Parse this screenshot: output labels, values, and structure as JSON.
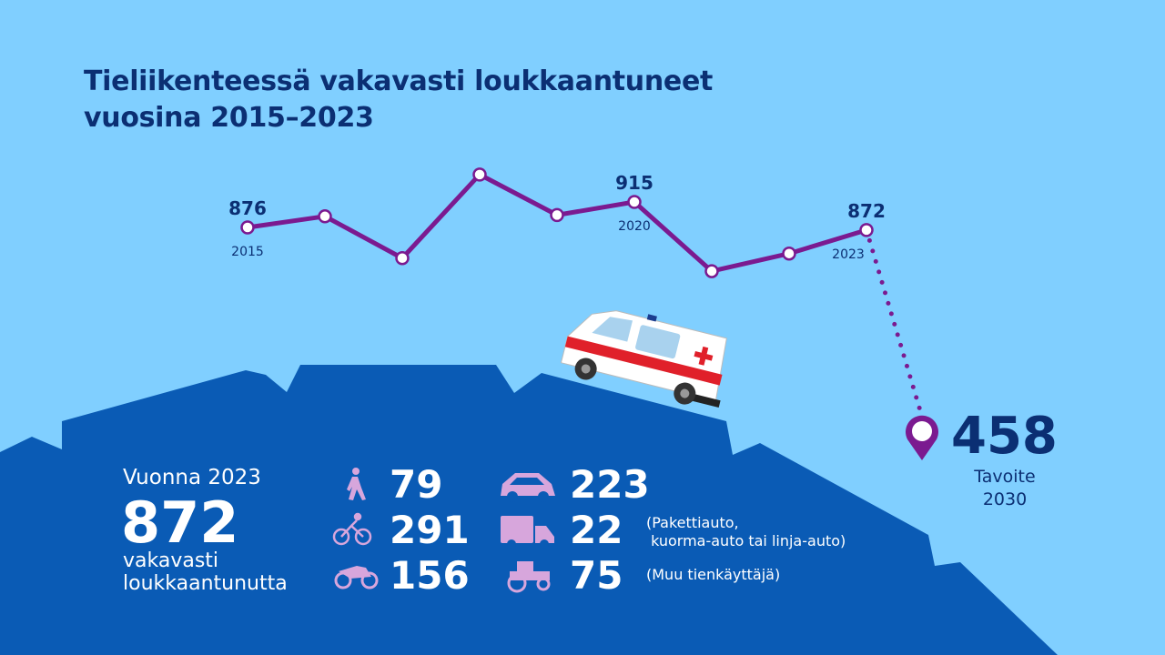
{
  "title_line1": "Tieliikenteessä vakavasti loukkaantuneet",
  "title_line2": "vuosina 2015–2023",
  "chart_data": {
    "type": "line",
    "x": [
      2015,
      2016,
      2017,
      2018,
      2019,
      2020,
      2021,
      2022,
      2023
    ],
    "values": [
      876,
      893,
      829,
      957,
      895,
      915,
      809,
      836,
      872
    ],
    "data_labels": {
      "2015": "876",
      "2020": "915",
      "2023": "872"
    },
    "tick_labels": [
      "2015",
      "2020",
      "2023"
    ],
    "target": {
      "year": 2030,
      "value": 458,
      "label": "458",
      "caption1": "Tavoite",
      "caption2": "2030"
    },
    "line_color": "#7b1a90",
    "grid": false
  },
  "summary": {
    "year_label": "Vuonna 2023",
    "total": "872",
    "desc1": "vakavasti",
    "desc2": "loukkaantunutta"
  },
  "categories": [
    {
      "icon": "pedestrian-icon",
      "value": "79",
      "note": ""
    },
    {
      "icon": "bicycle-icon",
      "value": "291",
      "note": ""
    },
    {
      "icon": "motorcycle-icon",
      "value": "156",
      "note": ""
    },
    {
      "icon": "car-icon",
      "value": "223",
      "note": ""
    },
    {
      "icon": "truck-icon",
      "value": "22",
      "note1": "(Pakettiauto,",
      "note2": " kuorma-auto tai linja-auto)"
    },
    {
      "icon": "tractor-icon",
      "value": "75",
      "note": "(Muu tienkäyttäjä)"
    }
  ],
  "colors": {
    "background": "#80cfff",
    "mountain": "#0a5bb5",
    "title": "#0b2f73",
    "icons": "#d7a6dc"
  }
}
